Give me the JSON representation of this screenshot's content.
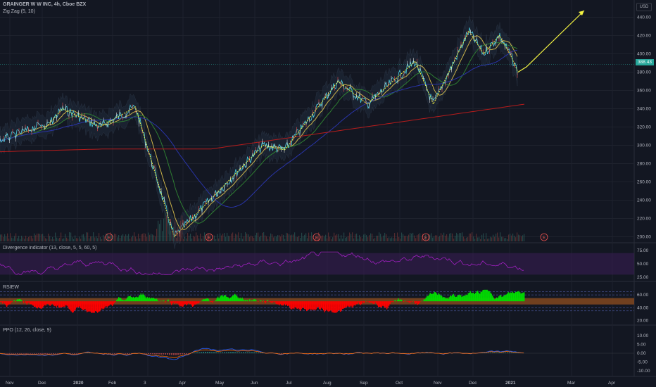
{
  "header": {
    "symbol_title": "GRAINGER W W INC, 4h, Cboe BZX",
    "indicator": "Zig Zag (5, 10)",
    "currency": "USD"
  },
  "last_price": "388.43",
  "colors": {
    "background": "#131722",
    "grid": "#1e222d",
    "up": "#26a69a",
    "down": "#ef5350",
    "ma_fast": "#c9b24a",
    "ma_mid": "#2e7d32",
    "ma_slow": "#2934a8",
    "ma_long": "#b71c1c",
    "zigzag": "#f5f542",
    "divergence": "#a020c0",
    "rsiew_up": "#00e000",
    "rsiew_down": "#ff0000"
  },
  "chart_data": [
    {
      "type": "line",
      "title": "GRAINGER W W INC, 4h, Cboe BZX",
      "y_axis": {
        "labels": [
          "440.00",
          "420.00",
          "400.00",
          "380.00",
          "360.00",
          "340.00",
          "320.00",
          "300.00",
          "280.00",
          "260.00",
          "240.00",
          "220.00",
          "200.00"
        ],
        "ylim": [
          195,
          445
        ],
        "position": "right"
      },
      "x_axis": {
        "labels": [
          "Nov",
          "Dec",
          "2020",
          "Feb",
          "3",
          "Apr",
          "May",
          "Jun",
          "Jul",
          "Aug",
          "Sep",
          "Oct",
          "Nov",
          "Dec",
          "2021",
          "Mar",
          "Apr"
        ]
      },
      "series": [
        {
          "name": "Zig Zag (5, 10)",
          "x": [
            "Dec 3",
            "Dec 18",
            "Jan 20",
            "Feb 20",
            "Mar 23",
            "Jun 8",
            "Jun 26",
            "Aug 10",
            "Sep 4",
            "Oct 14",
            "Oct 29",
            "Nov 27",
            "Dec 10",
            "Dec 23",
            "Jan 2",
            "Jan 8"
          ],
          "values": [
            318,
            340,
            320,
            342,
            200,
            300,
            295,
            370,
            345,
            392,
            345,
            425,
            400,
            420,
            398,
            380
          ]
        }
      ],
      "earnings_markers": [
        "E",
        "E",
        "E",
        "E",
        "E"
      ],
      "last_price": 388.43
    },
    {
      "type": "line",
      "title": "Divergence indicator (13, close, 5, 5, 60, 5)",
      "y_axis": {
        "labels": [
          "75.00",
          "50.00",
          "25.00"
        ],
        "ylim": [
          20,
          80
        ]
      }
    },
    {
      "type": "area",
      "title": "RSIEW",
      "y_axis": {
        "labels": [
          "60.00",
          "40.00",
          "20.00"
        ],
        "ylim": [
          15,
          70
        ]
      }
    },
    {
      "type": "line",
      "title": "PPO (12, 26, close, 9)",
      "y_axis": {
        "labels": [
          "10.00",
          "5.00",
          "0.00",
          "-5.00",
          "-10.00"
        ],
        "ylim": [
          -12,
          12
        ]
      }
    }
  ]
}
